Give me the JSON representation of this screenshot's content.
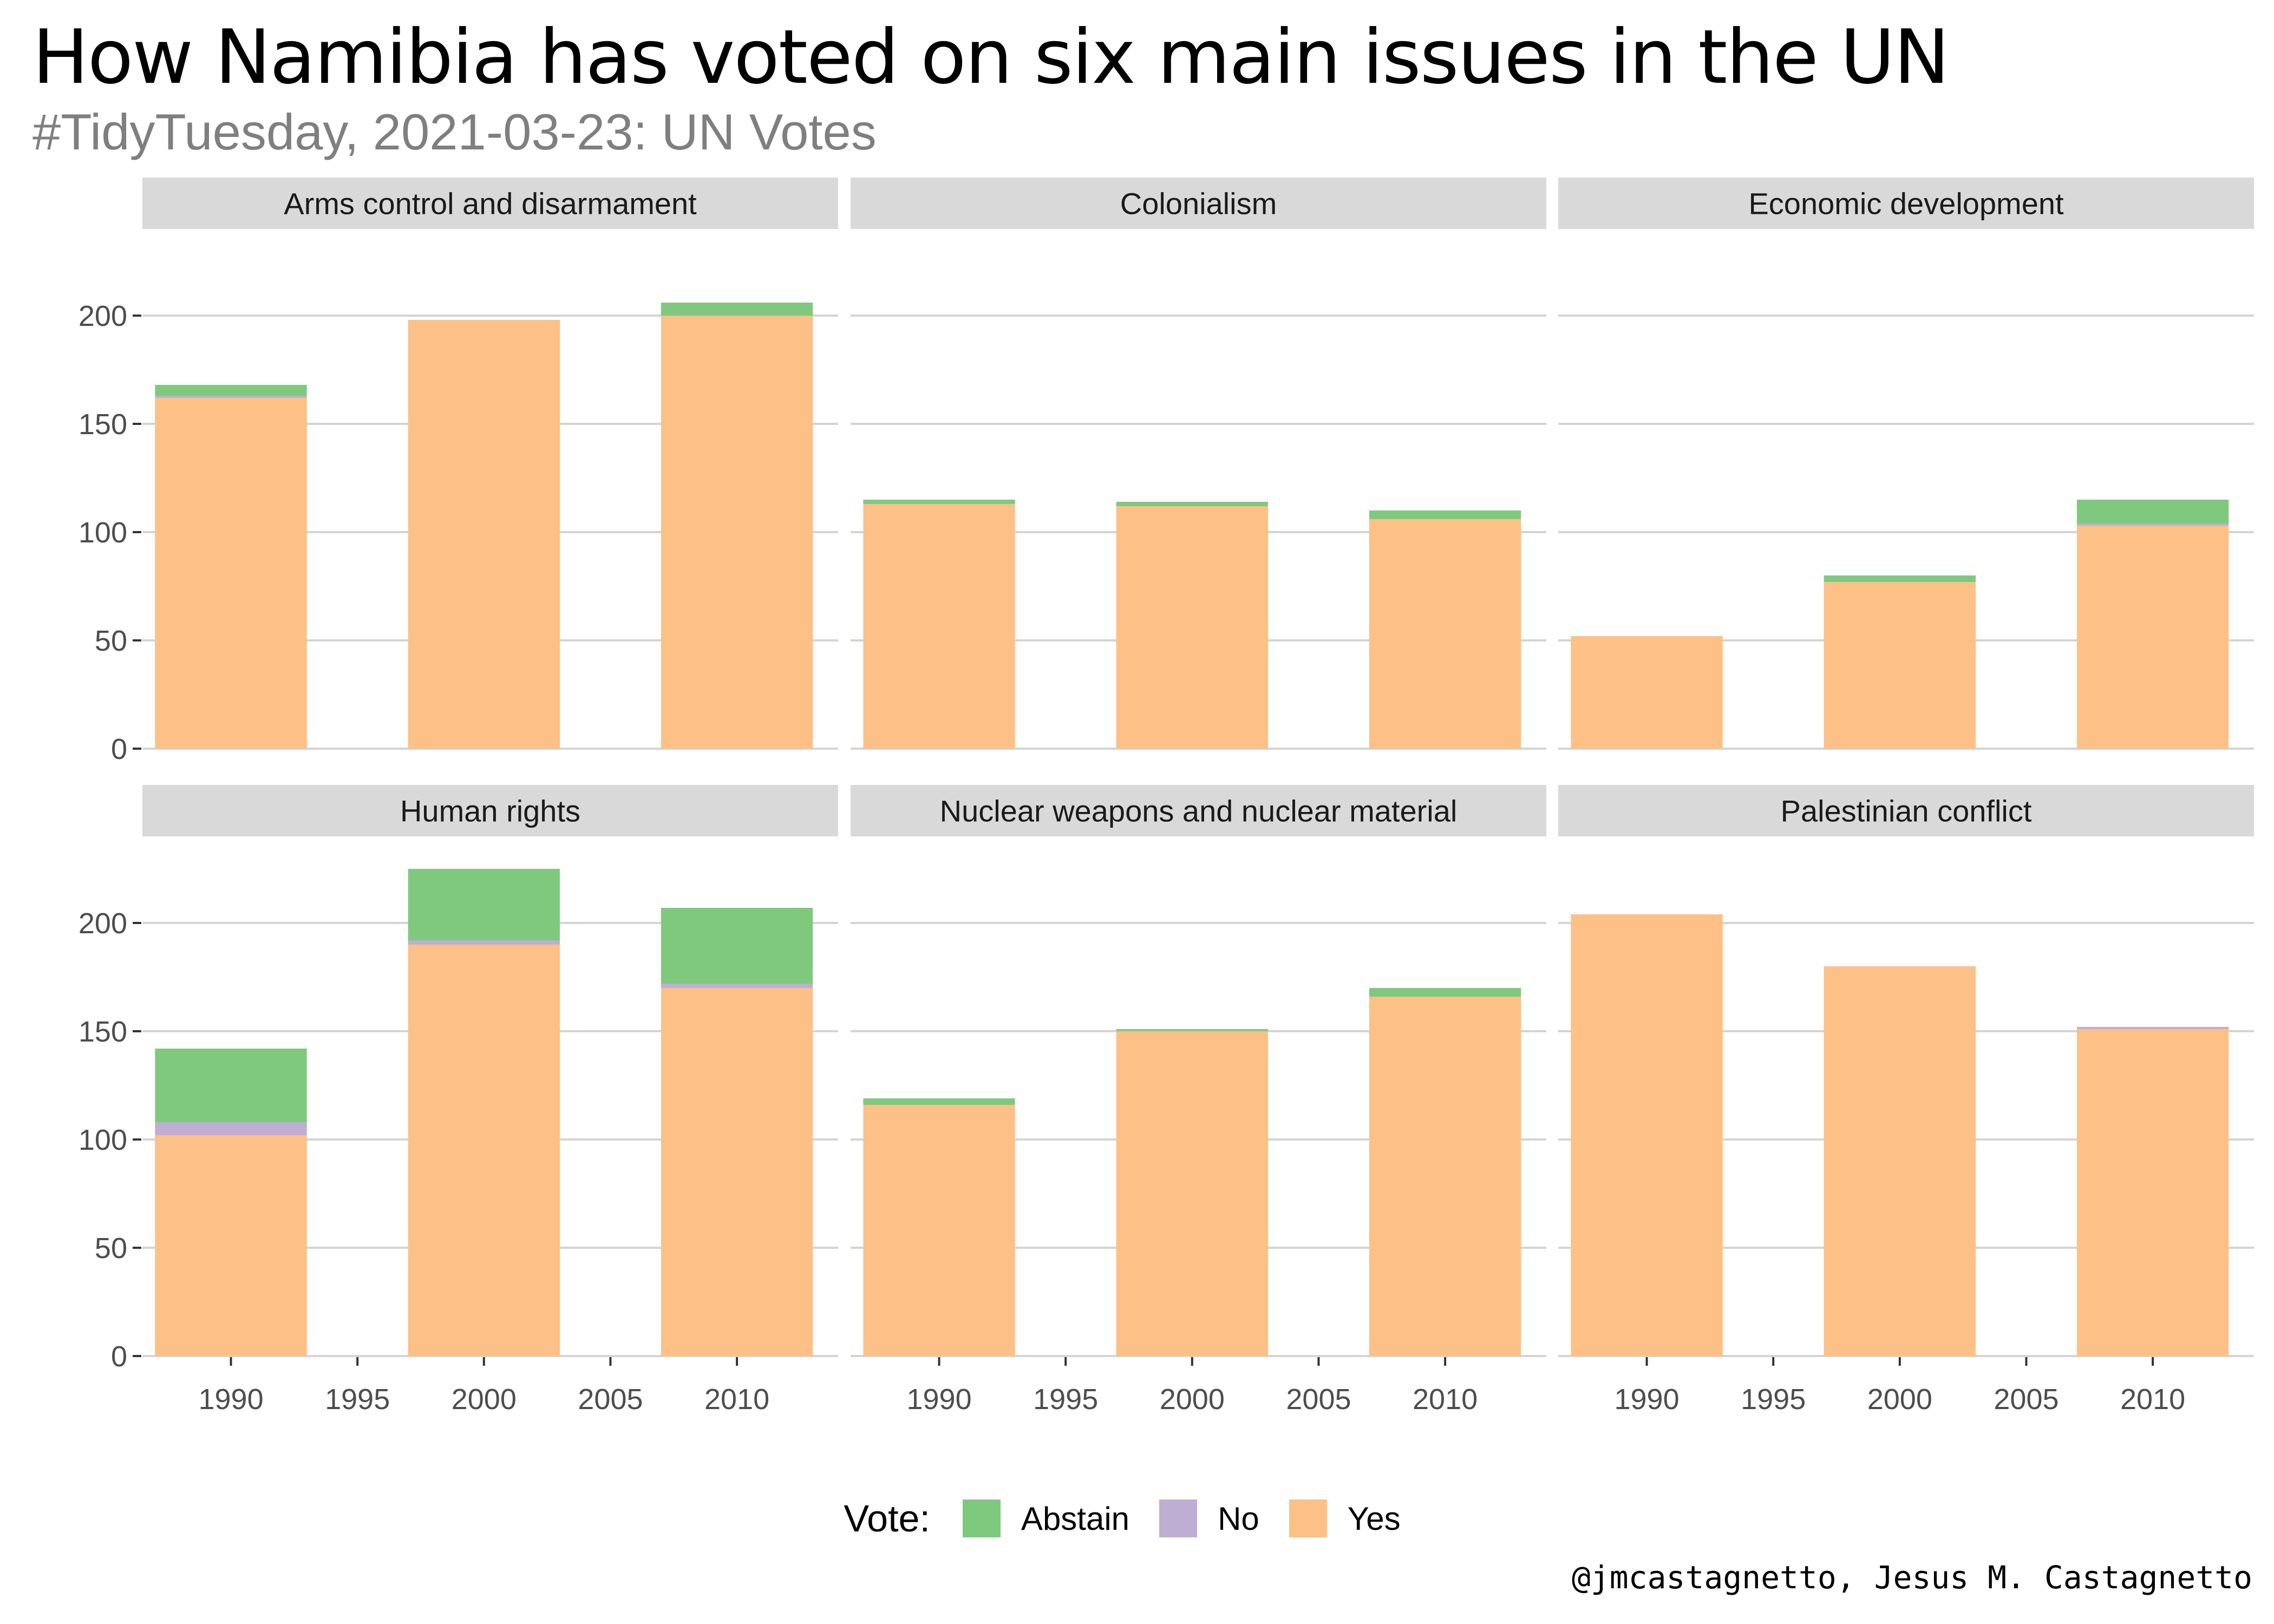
{
  "title": "How Namibia has voted on six main issues in the UN",
  "subtitle": "#TidyTuesday, 2021-03-23: UN Votes",
  "caption": "@jmcastagnetto, Jesus M. Castagnetto",
  "legend": {
    "title": "Vote:",
    "items": [
      {
        "label": "Abstain",
        "color": "#7fc97f"
      },
      {
        "label": "No",
        "color": "#beaed4"
      },
      {
        "label": "Yes",
        "color": "#fdc086"
      }
    ]
  },
  "chart_data": {
    "type": "bar",
    "stacked": true,
    "facet_layout": "2 rows x 3 columns",
    "x_ticks": [
      1990,
      1995,
      2000,
      2005,
      2010
    ],
    "y_ticks": [
      0,
      50,
      100,
      150,
      200
    ],
    "xlim": [
      1986.5,
      2014
    ],
    "ylim": [
      0,
      225
    ],
    "bar_width_years": 6,
    "grid": true,
    "series_order": [
      "Yes",
      "No",
      "Abstain"
    ],
    "series_colors": {
      "Abstain": "#7fc97f",
      "No": "#beaed4",
      "Yes": "#fdc086"
    },
    "facets": [
      {
        "name": "Arms control and disarmament",
        "x": [
          1990,
          2000,
          2010
        ],
        "series": [
          {
            "name": "Yes",
            "values": [
              162,
              198,
              200
            ]
          },
          {
            "name": "No",
            "values": [
              1,
              0,
              0
            ]
          },
          {
            "name": "Abstain",
            "values": [
              5,
              0,
              6
            ]
          }
        ]
      },
      {
        "name": "Colonialism",
        "x": [
          1990,
          2000,
          2010
        ],
        "series": [
          {
            "name": "Yes",
            "values": [
              113,
              112,
              106
            ]
          },
          {
            "name": "No",
            "values": [
              0,
              0,
              0
            ]
          },
          {
            "name": "Abstain",
            "values": [
              2,
              2,
              4
            ]
          }
        ]
      },
      {
        "name": "Economic development",
        "x": [
          1990,
          2000,
          2010
        ],
        "series": [
          {
            "name": "Yes",
            "values": [
              52,
              77,
              103
            ]
          },
          {
            "name": "No",
            "values": [
              0,
              0,
              1
            ]
          },
          {
            "name": "Abstain",
            "values": [
              0,
              3,
              11
            ]
          }
        ]
      },
      {
        "name": "Human rights",
        "x": [
          1990,
          2000,
          2010
        ],
        "series": [
          {
            "name": "Yes",
            "values": [
              102,
              190,
              170
            ]
          },
          {
            "name": "No",
            "values": [
              6,
              2,
              2
            ]
          },
          {
            "name": "Abstain",
            "values": [
              34,
              33,
              35
            ]
          }
        ]
      },
      {
        "name": "Nuclear weapons and nuclear material",
        "x": [
          1990,
          2000,
          2010
        ],
        "series": [
          {
            "name": "Yes",
            "values": [
              116,
              150,
              166
            ]
          },
          {
            "name": "No",
            "values": [
              0,
              0,
              0
            ]
          },
          {
            "name": "Abstain",
            "values": [
              3,
              1,
              4
            ]
          }
        ]
      },
      {
        "name": "Palestinian conflict",
        "x": [
          1990,
          2000,
          2010
        ],
        "series": [
          {
            "name": "Yes",
            "values": [
              204,
              180,
              151
            ]
          },
          {
            "name": "No",
            "values": [
              0,
              0,
              1
            ]
          },
          {
            "name": "Abstain",
            "values": [
              0,
              0,
              0
            ]
          }
        ]
      }
    ]
  }
}
